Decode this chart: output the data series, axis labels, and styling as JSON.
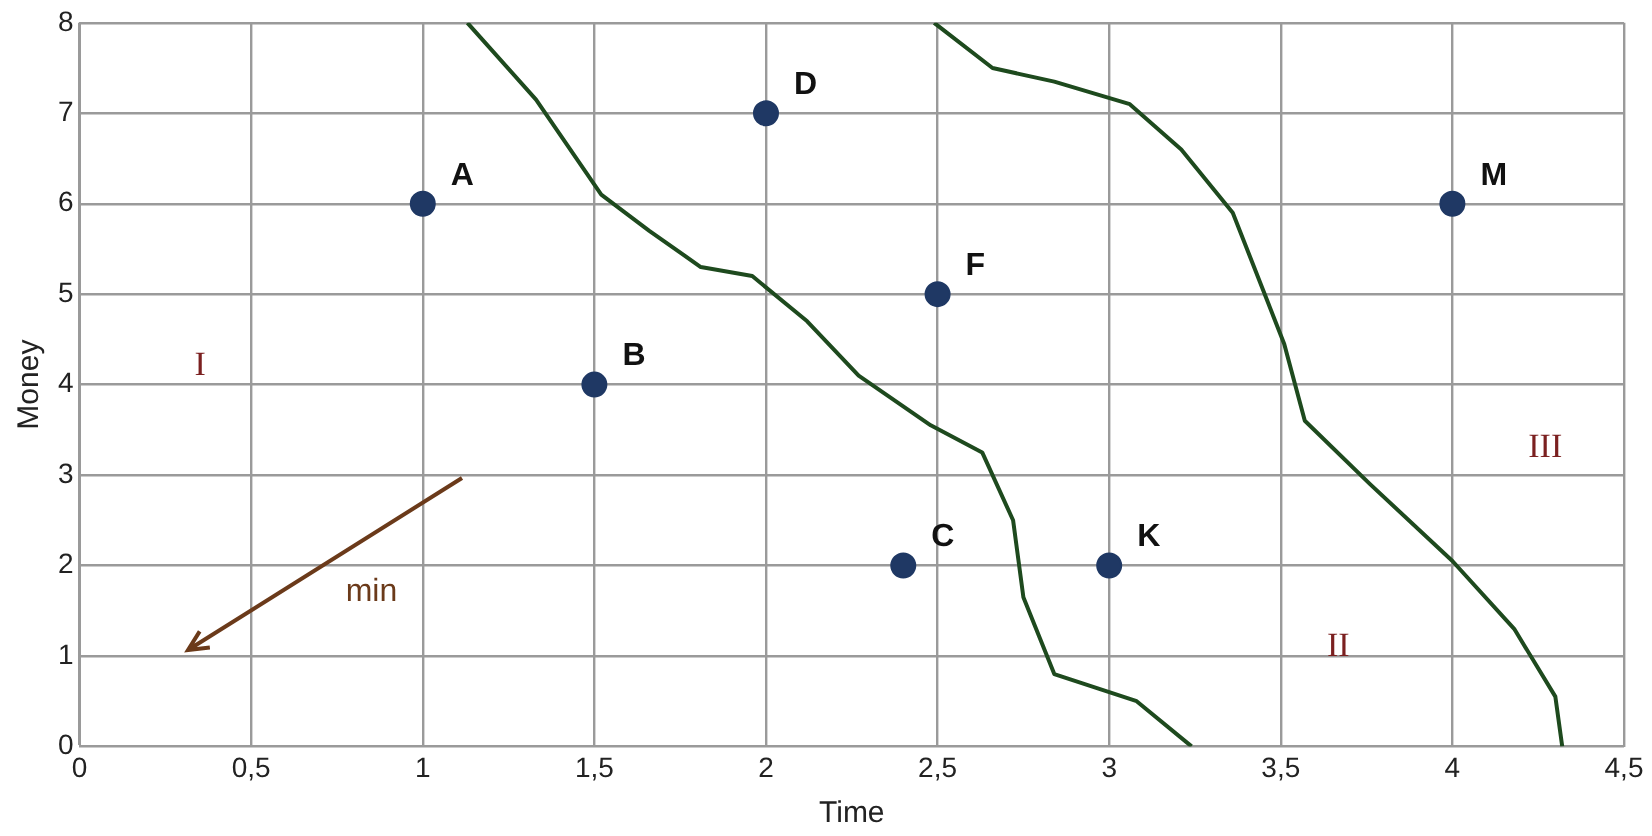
{
  "chart_data": {
    "type": "scatter",
    "xlabel": "Time",
    "ylabel": "Money",
    "xlim": [
      0,
      4.5
    ],
    "ylim": [
      0,
      8
    ],
    "xticks": [
      0,
      {
        "value": 0.5,
        "label": "0,5"
      },
      1,
      {
        "value": 1.5,
        "label": "1,5"
      },
      2,
      {
        "value": 2.5,
        "label": "2,5"
      },
      3,
      {
        "value": 3.5,
        "label": "3,5"
      },
      4,
      {
        "value": 4.5,
        "label": "4,5"
      }
    ],
    "yticks": [
      0,
      1,
      2,
      3,
      4,
      5,
      6,
      7,
      8
    ],
    "grid": true,
    "legend": false,
    "marker": "circle",
    "series": [
      {
        "name": "A",
        "color": "#1f3864",
        "x": [
          1
        ],
        "values": [
          6
        ]
      },
      {
        "name": "B",
        "color": "#1f3864",
        "x": [
          1.5
        ],
        "values": [
          4
        ]
      },
      {
        "name": "C",
        "color": "#1f3864",
        "x": [
          2.4
        ],
        "values": [
          2
        ]
      },
      {
        "name": "D",
        "color": "#1f3864",
        "x": [
          2
        ],
        "values": [
          7
        ]
      },
      {
        "name": "F",
        "color": "#1f3864",
        "x": [
          2.5
        ],
        "values": [
          5
        ]
      },
      {
        "name": "K",
        "color": "#1f3864",
        "x": [
          3
        ],
        "values": [
          2
        ]
      },
      {
        "name": "M",
        "color": "#1f3864",
        "x": [
          4
        ],
        "values": [
          6
        ]
      },
      {
        "type": "line",
        "marker": "none",
        "color": "#1e4a1e",
        "x": [
          1.13,
          1.33,
          1.52,
          1.66,
          1.81,
          1.96,
          2.12,
          2.27,
          2.48,
          2.63,
          2.72,
          2.75,
          2.84,
          3.08,
          3.24
        ],
        "values": [
          8,
          7.15,
          6.1,
          5.7,
          5.3,
          5.2,
          4.7,
          4.1,
          3.55,
          3.25,
          2.5,
          1.65,
          0.8,
          0.5,
          0
        ]
      },
      {
        "type": "line",
        "marker": "none",
        "color": "#1e4a1e",
        "x": [
          2.49,
          2.66,
          2.84,
          3.06,
          3.21,
          3.36,
          3.51,
          3.57,
          3.76,
          4,
          4.18,
          4.3,
          4.32
        ],
        "values": [
          8,
          7.5,
          7.35,
          7.1,
          6.6,
          5.9,
          4.45,
          3.6,
          2.9,
          2.05,
          1.3,
          0.55,
          0
        ]
      }
    ],
    "annotations": [
      "I",
      "II",
      "III",
      "min"
    ]
  }
}
